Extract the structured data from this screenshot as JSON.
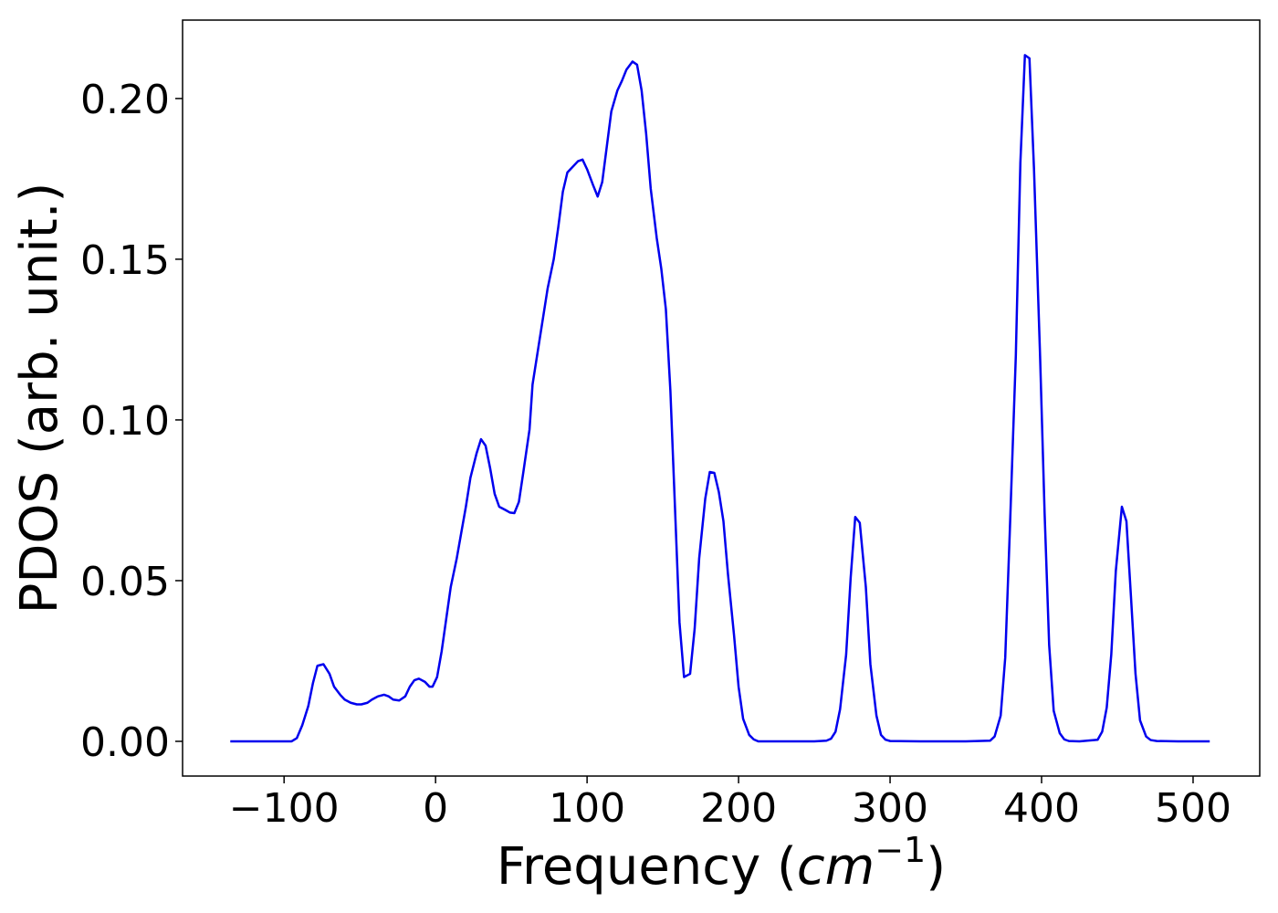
{
  "chart_data": {
    "type": "line",
    "xlabel": [
      "Frequency (",
      "cm",
      "−1",
      ")"
    ],
    "ylabel": "PDOS (arb. unit.)",
    "color": "#0000ee",
    "x": [
      -135.5,
      -100,
      -95,
      -91.6,
      -88,
      -84,
      -81,
      -78,
      -74,
      -70,
      -67,
      -63,
      -60,
      -56,
      -52,
      -49,
      -45,
      -42,
      -38,
      -34,
      -31,
      -28,
      -24,
      -20,
      -17,
      -14,
      -11,
      -7,
      -4,
      -2,
      1,
      4,
      7,
      10,
      14,
      17,
      20,
      23,
      27,
      30,
      33,
      36,
      39,
      42,
      46,
      49,
      52,
      55,
      58,
      62,
      64,
      68,
      71,
      74,
      78,
      81,
      84,
      87,
      90,
      94,
      97,
      100,
      104,
      107,
      110,
      113,
      116,
      120,
      123,
      126,
      130,
      133,
      136,
      139,
      142,
      146,
      149,
      152,
      155,
      158,
      161,
      164,
      168,
      171,
      174,
      178,
      181,
      184,
      187,
      190,
      193,
      197,
      200,
      203,
      207,
      210,
      213,
      230,
      250,
      258,
      261,
      264,
      267,
      271,
      274,
      277,
      280,
      284,
      287,
      291,
      294,
      297,
      300,
      320,
      350,
      366,
      369,
      373,
      376,
      379,
      383,
      386,
      389,
      392,
      395,
      399,
      402,
      405,
      408,
      412,
      415,
      418,
      425,
      437,
      440,
      443,
      446,
      449,
      453,
      456,
      459,
      462,
      465,
      469,
      472,
      476,
      490,
      511
    ],
    "values": [
      0,
      0,
      0,
      0.001,
      0.005,
      0.011,
      0.018,
      0.0235,
      0.024,
      0.021,
      0.017,
      0.0145,
      0.013,
      0.012,
      0.0115,
      0.0115,
      0.012,
      0.013,
      0.014,
      0.0145,
      0.014,
      0.013,
      0.0127,
      0.014,
      0.017,
      0.019,
      0.0195,
      0.0185,
      0.017,
      0.017,
      0.02,
      0.028,
      0.038,
      0.048,
      0.057,
      0.065,
      0.073,
      0.082,
      0.0895,
      0.094,
      0.092,
      0.085,
      0.077,
      0.073,
      0.072,
      0.0712,
      0.071,
      0.0745,
      0.084,
      0.097,
      0.111,
      0.123,
      0.132,
      0.141,
      0.15,
      0.16,
      0.171,
      0.177,
      0.1785,
      0.1805,
      0.181,
      0.178,
      0.173,
      0.1695,
      0.174,
      0.185,
      0.196,
      0.2025,
      0.2055,
      0.209,
      0.2115,
      0.2105,
      0.2025,
      0.189,
      0.172,
      0.1565,
      0.147,
      0.1345,
      0.109,
      0.073,
      0.037,
      0.02,
      0.021,
      0.035,
      0.057,
      0.0755,
      0.0838,
      0.0835,
      0.0775,
      0.0685,
      0.052,
      0.033,
      0.017,
      0.007,
      0.002,
      0.0006,
      0,
      0,
      0,
      0.0002,
      0.0008,
      0.003,
      0.01,
      0.027,
      0.051,
      0.0698,
      0.068,
      0.048,
      0.024,
      0.008,
      0.002,
      0.0005,
      0.0001,
      0,
      0,
      0.0002,
      0.0015,
      0.008,
      0.026,
      0.065,
      0.12,
      0.18,
      0.2135,
      0.2125,
      0.178,
      0.12,
      0.071,
      0.03,
      0.0095,
      0.0025,
      0.0006,
      0.0001,
      0,
      0.0005,
      0.003,
      0.0105,
      0.027,
      0.053,
      0.073,
      0.0685,
      0.045,
      0.021,
      0.0065,
      0.0015,
      0.0004,
      0.0001,
      0,
      0
    ],
    "xlim": [
      -167,
      544
    ],
    "ylim": [
      -0.0108,
      0.2244
    ],
    "xticks": [
      {
        "value": -100,
        "label": "−100"
      },
      0,
      100,
      200,
      300,
      400,
      500
    ],
    "yticks": [
      {
        "value": 0,
        "label": "0.00"
      },
      {
        "value": 0.05,
        "label": "0.05"
      },
      {
        "value": 0.1,
        "label": "0.10"
      },
      {
        "value": 0.15,
        "label": "0.15"
      },
      {
        "value": 0.2,
        "label": "0.20"
      }
    ],
    "grid": false
  }
}
